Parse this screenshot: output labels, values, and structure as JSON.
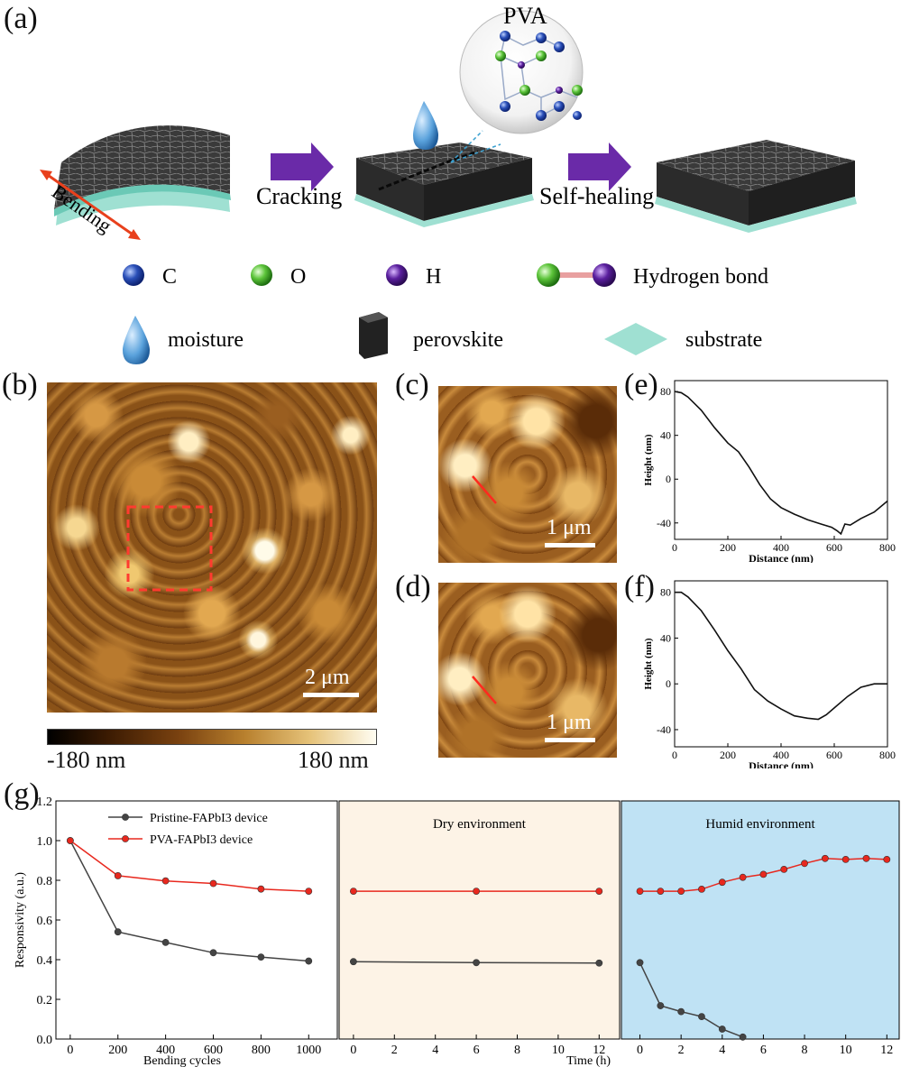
{
  "panel_a": {
    "label": "(a)",
    "pva_label": "PVA",
    "bending_label": "Bending",
    "arrow1_label": "Cracking",
    "arrow2_label": "Self-healing",
    "legend": {
      "c_label": "C",
      "o_label": "O",
      "h_label": "H",
      "hbond_label": "Hydrogen bond",
      "moisture_label": "moisture",
      "perovskite_label": "perovskite",
      "substrate_label": "substrate"
    },
    "colors": {
      "carbon": "#2a4fb8",
      "oxygen": "#5cc43a",
      "hydrogen": "#5a1f9e",
      "arrow": "#6a2aa8",
      "substrate": "#9fe0d2",
      "bend_arrow": "#e8401c"
    }
  },
  "panel_b": {
    "label": "(b)",
    "scale": "2 μm",
    "cbar_min": "-180 nm",
    "cbar_max": "180 nm"
  },
  "panel_c": {
    "label": "(c)",
    "scale": "1 μm"
  },
  "panel_d": {
    "label": "(d)",
    "scale": "1 μm"
  },
  "chart_data": [
    {
      "id": "e",
      "label": "(e)",
      "type": "line",
      "xlabel": "Distance (nm)",
      "ylabel": "Height (nm)",
      "xlim": [
        0,
        800
      ],
      "ylim": [
        -55,
        90
      ],
      "xticks": [
        0,
        200,
        400,
        600,
        800
      ],
      "yticks": [
        -40,
        0,
        40,
        80
      ],
      "x": [
        0,
        25,
        50,
        100,
        150,
        200,
        240,
        280,
        320,
        360,
        400,
        450,
        500,
        550,
        590,
        610,
        625,
        640,
        660,
        700,
        750,
        800
      ],
      "y": [
        80,
        79,
        75,
        63,
        47,
        33,
        25,
        11,
        -5,
        -18,
        -26,
        -32,
        -37,
        -41,
        -44,
        -47,
        -50,
        -41,
        -42,
        -36,
        -30,
        -20
      ]
    },
    {
      "id": "f",
      "label": "(f)",
      "type": "line",
      "xlabel": "Distance (nm)",
      "ylabel": "Height (nm)",
      "xlim": [
        0,
        800
      ],
      "ylim": [
        -55,
        90
      ],
      "xticks": [
        0,
        200,
        400,
        600,
        800
      ],
      "yticks": [
        -40,
        0,
        40,
        80
      ],
      "x": [
        0,
        25,
        50,
        100,
        150,
        200,
        250,
        300,
        350,
        400,
        450,
        500,
        540,
        570,
        600,
        650,
        700,
        750,
        800
      ],
      "y": [
        80,
        80,
        76,
        64,
        47,
        29,
        13,
        -5,
        -15,
        -22,
        -28,
        -30,
        -31,
        -27,
        -21,
        -11,
        -3,
        0,
        0
      ]
    },
    {
      "id": "g",
      "label": "(g)",
      "type": "line",
      "ylabel": "Responsivity (a.u.)",
      "ylim": [
        0,
        1.2
      ],
      "yticks": [
        0.0,
        0.2,
        0.4,
        0.6,
        0.8,
        1.0,
        1.2
      ],
      "series_names": [
        "Pristine-FAPbI3 device",
        "PVA-FAPbI3 device"
      ],
      "series_colors": [
        "#444444",
        "#e8281e"
      ],
      "panels": [
        {
          "xlabel": "Bending cycles",
          "xlim": [
            -60,
            1120
          ],
          "xticks": [
            0,
            200,
            400,
            600,
            800,
            1000
          ],
          "background": "#ffffff",
          "title": "",
          "x": [
            0,
            200,
            400,
            600,
            800,
            1000
          ],
          "pristine": [
            1.0,
            0.54,
            0.487,
            0.435,
            0.413,
            0.393
          ],
          "pva": [
            1.0,
            0.823,
            0.797,
            0.784,
            0.756,
            0.745
          ]
        },
        {
          "xlabel": "Time (h)",
          "xlim": [
            -0.7,
            13.0
          ],
          "xticks": [
            0,
            2,
            4,
            6,
            8,
            10,
            12
          ],
          "background": "#fdf3e6",
          "title": "Dry environment",
          "x": [
            0,
            6,
            12
          ],
          "pristine": [
            0.39,
            0.385,
            0.383
          ],
          "pva": [
            0.745,
            0.745,
            0.745
          ]
        },
        {
          "xlabel": "",
          "xlim": [
            -0.9,
            12.6
          ],
          "xticks": [
            0,
            2,
            4,
            6,
            8,
            10,
            12
          ],
          "background": "#bfe2f4",
          "title": "Humid environment",
          "x_pristine": [
            0,
            1,
            2,
            3,
            4,
            5
          ],
          "pristine": [
            0.385,
            0.168,
            0.138,
            0.113,
            0.05,
            0.01
          ],
          "x_pva": [
            0,
            1,
            2,
            3,
            4,
            5,
            6,
            7,
            8,
            9,
            10,
            11,
            12
          ],
          "pva": [
            0.745,
            0.745,
            0.745,
            0.755,
            0.79,
            0.815,
            0.83,
            0.855,
            0.885,
            0.91,
            0.905,
            0.91,
            0.905
          ]
        }
      ]
    }
  ]
}
